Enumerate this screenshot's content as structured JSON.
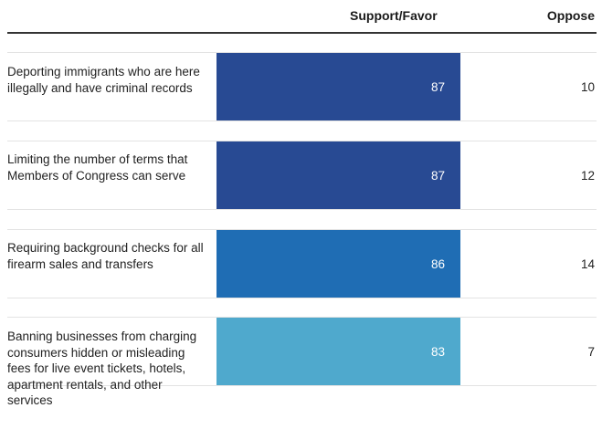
{
  "header": {
    "support_label": "Support/Favor",
    "oppose_label": "Oppose"
  },
  "colors": {
    "bar_dark": "#284a93",
    "bar_mid": "#1f6db4",
    "bar_light": "#4fa9cd",
    "bar_value_text": "#ffffff",
    "row_divider": "#e3e3e3"
  },
  "chart_data": {
    "type": "bar",
    "orientation": "horizontal",
    "categories": [
      "Deporting immigrants who are here illegally and have criminal records",
      "Limiting the number of terms that Members of Congress can serve",
      "Requiring background checks for all firearm sales and transfers",
      "Banning businesses from charging consumers hidden or misleading fees for live event tickets, hotels, apartment rentals, and other services"
    ],
    "series": [
      {
        "name": "Support/Favor",
        "values": [
          87,
          87,
          86,
          83
        ]
      },
      {
        "name": "Oppose",
        "values": [
          10,
          12,
          14,
          7
        ]
      }
    ],
    "bar_colors": [
      "#284a93",
      "#284a93",
      "#1f6db4",
      "#4fa9cd"
    ]
  }
}
